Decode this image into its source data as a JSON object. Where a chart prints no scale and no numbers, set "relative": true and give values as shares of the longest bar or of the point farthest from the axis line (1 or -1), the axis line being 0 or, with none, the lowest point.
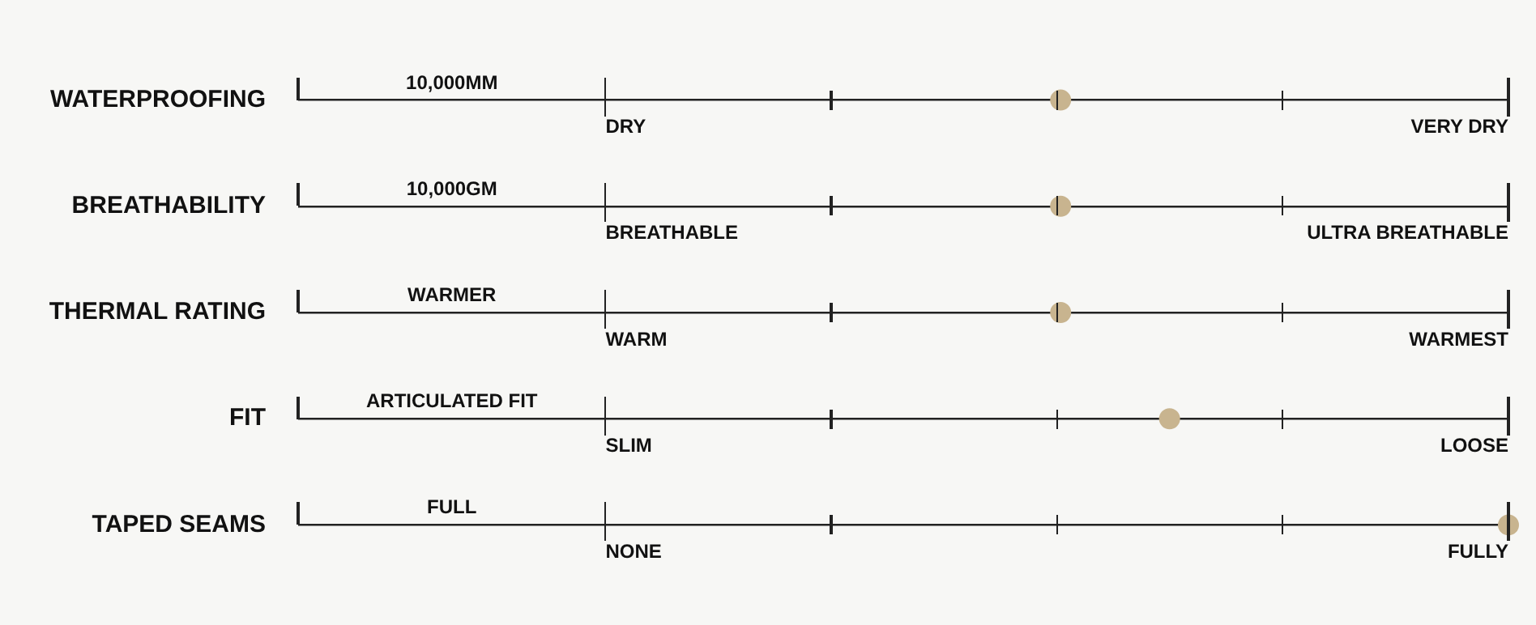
{
  "chart_data": {
    "type": "scatter",
    "orientation": "horizontal",
    "relative": true,
    "categories": [
      "WATERPROOFING",
      "BREATHABILITY",
      "THERMAL RATING",
      "FIT",
      "TAPED SEAMS"
    ],
    "values": [
      0.63,
      0.63,
      0.63,
      0.72,
      1
    ],
    "color": "#c8b48f",
    "marker": "circle",
    "grid": "y",
    "annotations": [
      "10,000MM",
      "DRY",
      "VERY DRY",
      "10,000GM",
      "BREATHABLE",
      "ULTRA BREATHABLE",
      "WARMER",
      "WARM",
      "WARMEST",
      "ARTICULATED FIT",
      "SLIM",
      "LOOSE",
      "FULL",
      "NONE",
      "FULLY"
    ]
  }
}
